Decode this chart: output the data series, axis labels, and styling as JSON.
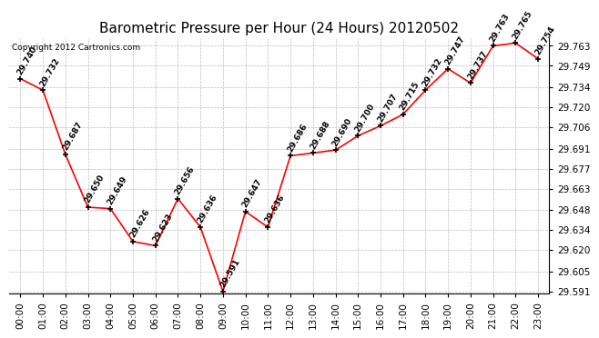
{
  "title": "Barometric Pressure per Hour (24 Hours) 20120502",
  "copyright": "Copyright 2012 Cartronics.com",
  "hours": [
    0,
    1,
    2,
    3,
    4,
    5,
    6,
    7,
    8,
    9,
    10,
    11,
    12,
    13,
    14,
    15,
    16,
    17,
    18,
    19,
    20,
    21,
    22,
    23
  ],
  "hour_labels": [
    "00:00",
    "01:00",
    "02:00",
    "03:00",
    "04:00",
    "05:00",
    "06:00",
    "07:00",
    "08:00",
    "09:00",
    "10:00",
    "11:00",
    "12:00",
    "13:00",
    "14:00",
    "15:00",
    "16:00",
    "17:00",
    "18:00",
    "19:00",
    "20:00",
    "21:00",
    "22:00",
    "23:00"
  ],
  "values": [
    29.74,
    29.732,
    29.687,
    29.65,
    29.649,
    29.626,
    29.623,
    29.656,
    29.636,
    29.591,
    29.647,
    29.636,
    29.686,
    29.688,
    29.69,
    29.7,
    29.707,
    29.715,
    29.732,
    29.747,
    29.737,
    29.763,
    29.765,
    29.754
  ],
  "ylim_min": 29.5895,
  "ylim_max": 29.7685,
  "yticks": [
    29.591,
    29.605,
    29.62,
    29.634,
    29.648,
    29.663,
    29.677,
    29.691,
    29.706,
    29.72,
    29.734,
    29.749,
    29.763
  ],
  "line_color": "red",
  "marker_color": "black",
  "bg_color": "white",
  "grid_color": "#bbbbbb",
  "title_fontsize": 11,
  "label_fontsize": 6.5,
  "tick_fontsize": 7.5,
  "copyright_fontsize": 6.5
}
